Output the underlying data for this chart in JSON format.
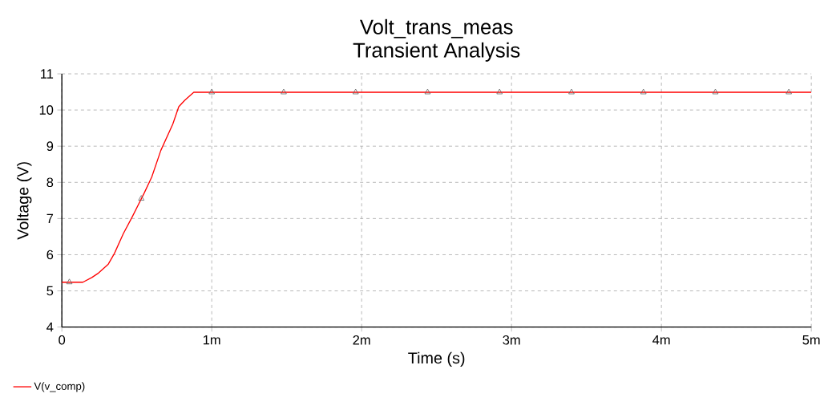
{
  "chart_data": {
    "type": "line",
    "title": "Volt_trans_meas",
    "subtitle": "Transient Analysis",
    "xlabel": "Time (s)",
    "ylabel": "Voltage (V)",
    "xlim": [
      0,
      5
    ],
    "ylim": [
      4,
      11
    ],
    "xticks": [
      0,
      {
        "value": 1,
        "label": "1m"
      },
      {
        "value": 2,
        "label": "2m"
      },
      {
        "value": 3,
        "label": "3m"
      },
      {
        "value": 4,
        "label": "4m"
      },
      {
        "value": 5,
        "label": "5m"
      }
    ],
    "yticks": [
      4,
      5,
      6,
      7,
      8,
      9,
      10,
      11
    ],
    "grid": true,
    "legend": "bottom left",
    "line_style": "solid",
    "series": [
      {
        "name": "V(v_comp)",
        "color": "#ff0000",
        "marker": "none",
        "x": [
          0,
          0.14,
          0.2,
          0.24,
          0.31,
          0.35,
          0.41,
          0.47,
          0.55,
          0.6,
          0.66,
          0.74,
          0.78,
          0.82,
          0.88,
          5
        ],
        "values": [
          5.24,
          5.24,
          5.37,
          5.48,
          5.74,
          6.03,
          6.58,
          7.05,
          7.71,
          8.15,
          8.88,
          9.61,
          10.09,
          10.27,
          10.49,
          10.49
        ]
      },
      {
        "type": "scatter",
        "color": "#606060",
        "marker": "triangle",
        "x": [
          0.05,
          0.53,
          1.0,
          1.48,
          1.96,
          2.44,
          2.92,
          3.4,
          3.88,
          4.36,
          4.85
        ],
        "values": [
          5.24,
          7.55,
          10.49,
          10.49,
          10.49,
          10.49,
          10.49,
          10.49,
          10.49,
          10.49,
          10.49
        ]
      }
    ]
  }
}
